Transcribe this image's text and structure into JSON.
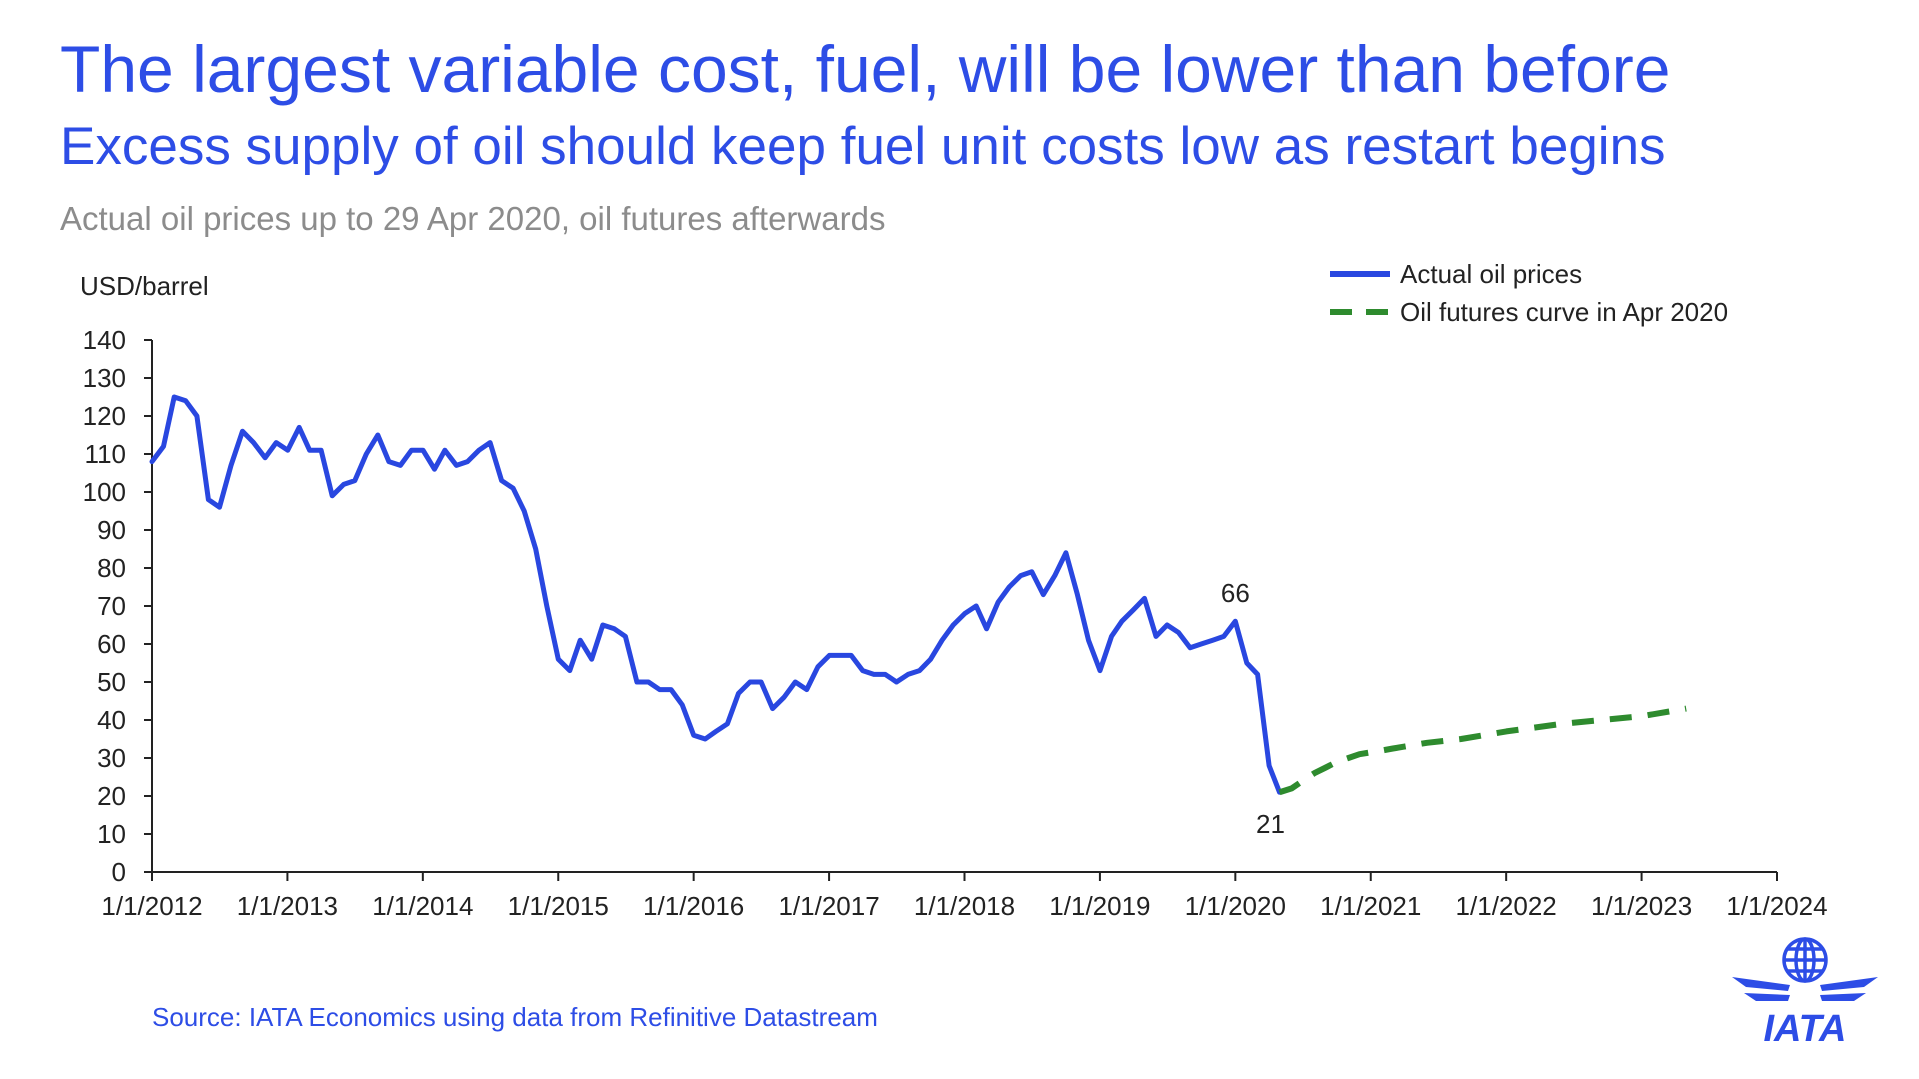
{
  "title": "The largest variable cost, fuel, will be lower than before",
  "subtitle": "Excess supply of oil should keep fuel unit costs low as restart begins",
  "caption": "Actual oil prices up to 29 Apr 2020, oil futures afterwards",
  "source": "Source: IATA Economics using data from Refinitive Datastream",
  "logo_text": "IATA",
  "colors": {
    "title": "#2d4de6",
    "actual": "#2947e0",
    "futures": "#2e8b2e",
    "caption": "#8c8c8c",
    "axis": "#222222"
  },
  "chart_data": {
    "type": "line",
    "ylabel": "USD/barrel",
    "ylim": [
      0,
      140
    ],
    "yticks": [
      0,
      10,
      20,
      30,
      40,
      50,
      60,
      70,
      80,
      90,
      100,
      110,
      120,
      130,
      140
    ],
    "xlim": [
      "2012-01-01",
      "2024-01-01"
    ],
    "xtick_labels": [
      "1/1/2012",
      "1/1/2013",
      "1/1/2014",
      "1/1/2015",
      "1/1/2016",
      "1/1/2017",
      "1/1/2018",
      "1/1/2019",
      "1/1/2020",
      "1/1/2021",
      "1/1/2022",
      "1/1/2023",
      "1/1/2024"
    ],
    "legend_position": "top-right",
    "series": [
      {
        "name": "Actual oil prices",
        "style": "solid",
        "x": [
          "2012-01-01",
          "2012-02-01",
          "2012-03-01",
          "2012-04-01",
          "2012-05-01",
          "2012-06-01",
          "2012-07-01",
          "2012-08-01",
          "2012-09-01",
          "2012-10-01",
          "2012-11-01",
          "2012-12-01",
          "2013-01-01",
          "2013-02-01",
          "2013-03-01",
          "2013-04-01",
          "2013-05-01",
          "2013-06-01",
          "2013-07-01",
          "2013-08-01",
          "2013-09-01",
          "2013-10-01",
          "2013-11-01",
          "2013-12-01",
          "2014-01-01",
          "2014-02-01",
          "2014-03-01",
          "2014-04-01",
          "2014-05-01",
          "2014-06-01",
          "2014-07-01",
          "2014-08-01",
          "2014-09-01",
          "2014-10-01",
          "2014-11-01",
          "2014-12-01",
          "2015-01-01",
          "2015-02-01",
          "2015-03-01",
          "2015-04-01",
          "2015-05-01",
          "2015-06-01",
          "2015-07-01",
          "2015-08-01",
          "2015-09-01",
          "2015-10-01",
          "2015-11-01",
          "2015-12-01",
          "2016-01-01",
          "2016-02-01",
          "2016-03-01",
          "2016-04-01",
          "2016-05-01",
          "2016-06-01",
          "2016-07-01",
          "2016-08-01",
          "2016-09-01",
          "2016-10-01",
          "2016-11-01",
          "2016-12-01",
          "2017-01-01",
          "2017-02-01",
          "2017-03-01",
          "2017-04-01",
          "2017-05-01",
          "2017-06-01",
          "2017-07-01",
          "2017-08-01",
          "2017-09-01",
          "2017-10-01",
          "2017-11-01",
          "2017-12-01",
          "2018-01-01",
          "2018-02-01",
          "2018-03-01",
          "2018-04-01",
          "2018-05-01",
          "2018-06-01",
          "2018-07-01",
          "2018-08-01",
          "2018-09-01",
          "2018-10-01",
          "2018-11-01",
          "2018-12-01",
          "2019-01-01",
          "2019-02-01",
          "2019-03-01",
          "2019-04-01",
          "2019-05-01",
          "2019-06-01",
          "2019-07-01",
          "2019-08-01",
          "2019-09-01",
          "2019-10-01",
          "2019-11-01",
          "2019-12-01",
          "2020-01-01",
          "2020-02-01",
          "2020-03-01",
          "2020-04-01",
          "2020-04-29"
        ],
        "values": [
          108,
          112,
          125,
          124,
          120,
          98,
          96,
          107,
          116,
          113,
          109,
          113,
          111,
          117,
          111,
          111,
          99,
          102,
          103,
          110,
          115,
          108,
          107,
          111,
          111,
          106,
          111,
          107,
          108,
          111,
          113,
          103,
          101,
          95,
          85,
          70,
          56,
          53,
          61,
          56,
          65,
          64,
          62,
          50,
          50,
          48,
          48,
          44,
          36,
          35,
          37,
          39,
          47,
          50,
          50,
          43,
          46,
          50,
          48,
          54,
          57,
          57,
          57,
          53,
          52,
          52,
          50,
          52,
          53,
          56,
          61,
          65,
          68,
          70,
          64,
          71,
          75,
          78,
          79,
          73,
          78,
          84,
          73,
          61,
          53,
          62,
          66,
          69,
          72,
          62,
          65,
          63,
          59,
          60,
          61,
          62,
          66,
          55,
          52,
          28,
          21
        ]
      },
      {
        "name": "Oil futures curve in Apr 2020",
        "style": "dashed",
        "x": [
          "2020-04-29",
          "2020-06-01",
          "2020-07-01",
          "2020-08-01",
          "2020-09-01",
          "2020-10-01",
          "2020-11-01",
          "2020-12-01",
          "2021-01-01",
          "2021-02-01",
          "2021-03-01",
          "2021-04-01",
          "2021-05-01",
          "2021-06-01",
          "2021-09-01",
          "2022-01-01",
          "2022-06-01",
          "2023-01-01",
          "2023-05-01"
        ],
        "values": [
          21,
          22,
          24,
          26,
          27.5,
          29,
          30,
          31,
          31.5,
          32,
          32.5,
          33,
          33.5,
          34,
          35,
          37,
          39,
          41,
          43
        ]
      }
    ],
    "annotations": [
      {
        "x": "2020-01-01",
        "y": 66,
        "text": "66"
      },
      {
        "x": "2020-04-29",
        "y": 21,
        "text": "21"
      }
    ]
  }
}
